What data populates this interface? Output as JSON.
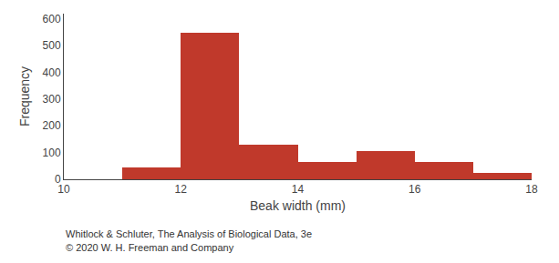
{
  "chart_data": {
    "type": "histogram",
    "xlabel": "Beak width (mm)",
    "ylabel": "Frequency",
    "bins": [
      11,
      12,
      13,
      14,
      15,
      16,
      17,
      18
    ],
    "values": [
      45,
      550,
      130,
      65,
      107,
      65,
      25
    ],
    "color": "#c0392b",
    "xlim": [
      10,
      18
    ],
    "ylim": [
      0,
      620
    ],
    "xticks": [
      10,
      12,
      14,
      16,
      18
    ],
    "yticks": [
      0,
      100,
      200,
      300,
      400,
      500,
      600
    ],
    "grid": false,
    "annotations": [
      "Whitlock & Schluter, The Analysis of Biological Data, 3e",
      "© 2020 W. H. Freeman and Company"
    ]
  }
}
